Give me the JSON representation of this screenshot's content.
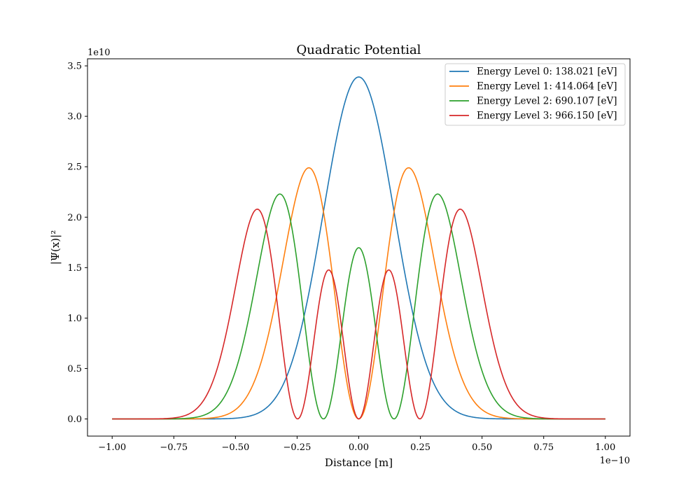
{
  "chart_data": {
    "type": "line",
    "title": "Quadratic Potential",
    "xlabel": "Distance [m]",
    "ylabel": "|Ψ(x)|²",
    "x_offset_text": "1e−10",
    "y_offset_text": "1e10",
    "x_unit_scale": 1e-10,
    "y_unit_scale": 10000000000.0,
    "xlim": [
      -1.1e-10,
      1.1e-10
    ],
    "ylim": [
      -1700000000.0,
      35700000000.0
    ],
    "x_ticks": [
      -1e-10,
      -7.5e-11,
      -5e-11,
      -2.5e-11,
      0,
      2.5e-11,
      5e-11,
      7.5e-11,
      1e-10
    ],
    "x_tick_labels": [
      "−1.00",
      "−0.75",
      "−0.50",
      "−0.25",
      "0.00",
      "0.25",
      "0.50",
      "0.75",
      "1.00"
    ],
    "y_ticks": [
      0,
      5000000000.0,
      10000000000.0,
      15000000000.0,
      20000000000.0,
      25000000000.0,
      30000000000.0,
      35000000000.0
    ],
    "y_tick_labels": [
      "0.0",
      "0.5",
      "1.0",
      "1.5",
      "2.0",
      "2.5",
      "3.0",
      "3.5"
    ],
    "grid": false,
    "legend_position": "top-right",
    "series": [
      {
        "name": "Energy Level 0: 138.021 [eV]",
        "color": "#1f77b4",
        "n": 0,
        "x_range": [
          -1e-10,
          1e-10
        ],
        "samples": 401,
        "alpha": 2.023e-11,
        "peak_value": 33900000000.0
      },
      {
        "name": "Energy Level 1: 414.064 [eV]",
        "color": "#ff7f0e",
        "n": 1,
        "x_range": [
          -1e-10,
          1e-10
        ],
        "samples": 401,
        "alpha": 2.023e-11,
        "peak_value": 24900000000.0
      },
      {
        "name": "Energy Level 2: 690.107 [eV]",
        "color": "#2ca02c",
        "n": 2,
        "x_range": [
          -1e-10,
          1e-10
        ],
        "samples": 401,
        "alpha": 2.023e-11,
        "peak_value": 22300000000.0
      },
      {
        "name": "Energy Level 3: 966.150 [eV]",
        "color": "#d62728",
        "n": 3,
        "x_range": [
          -1e-10,
          1e-10
        ],
        "samples": 401,
        "alpha": 2.023e-11,
        "peak_value": 20800000000.0
      }
    ]
  }
}
